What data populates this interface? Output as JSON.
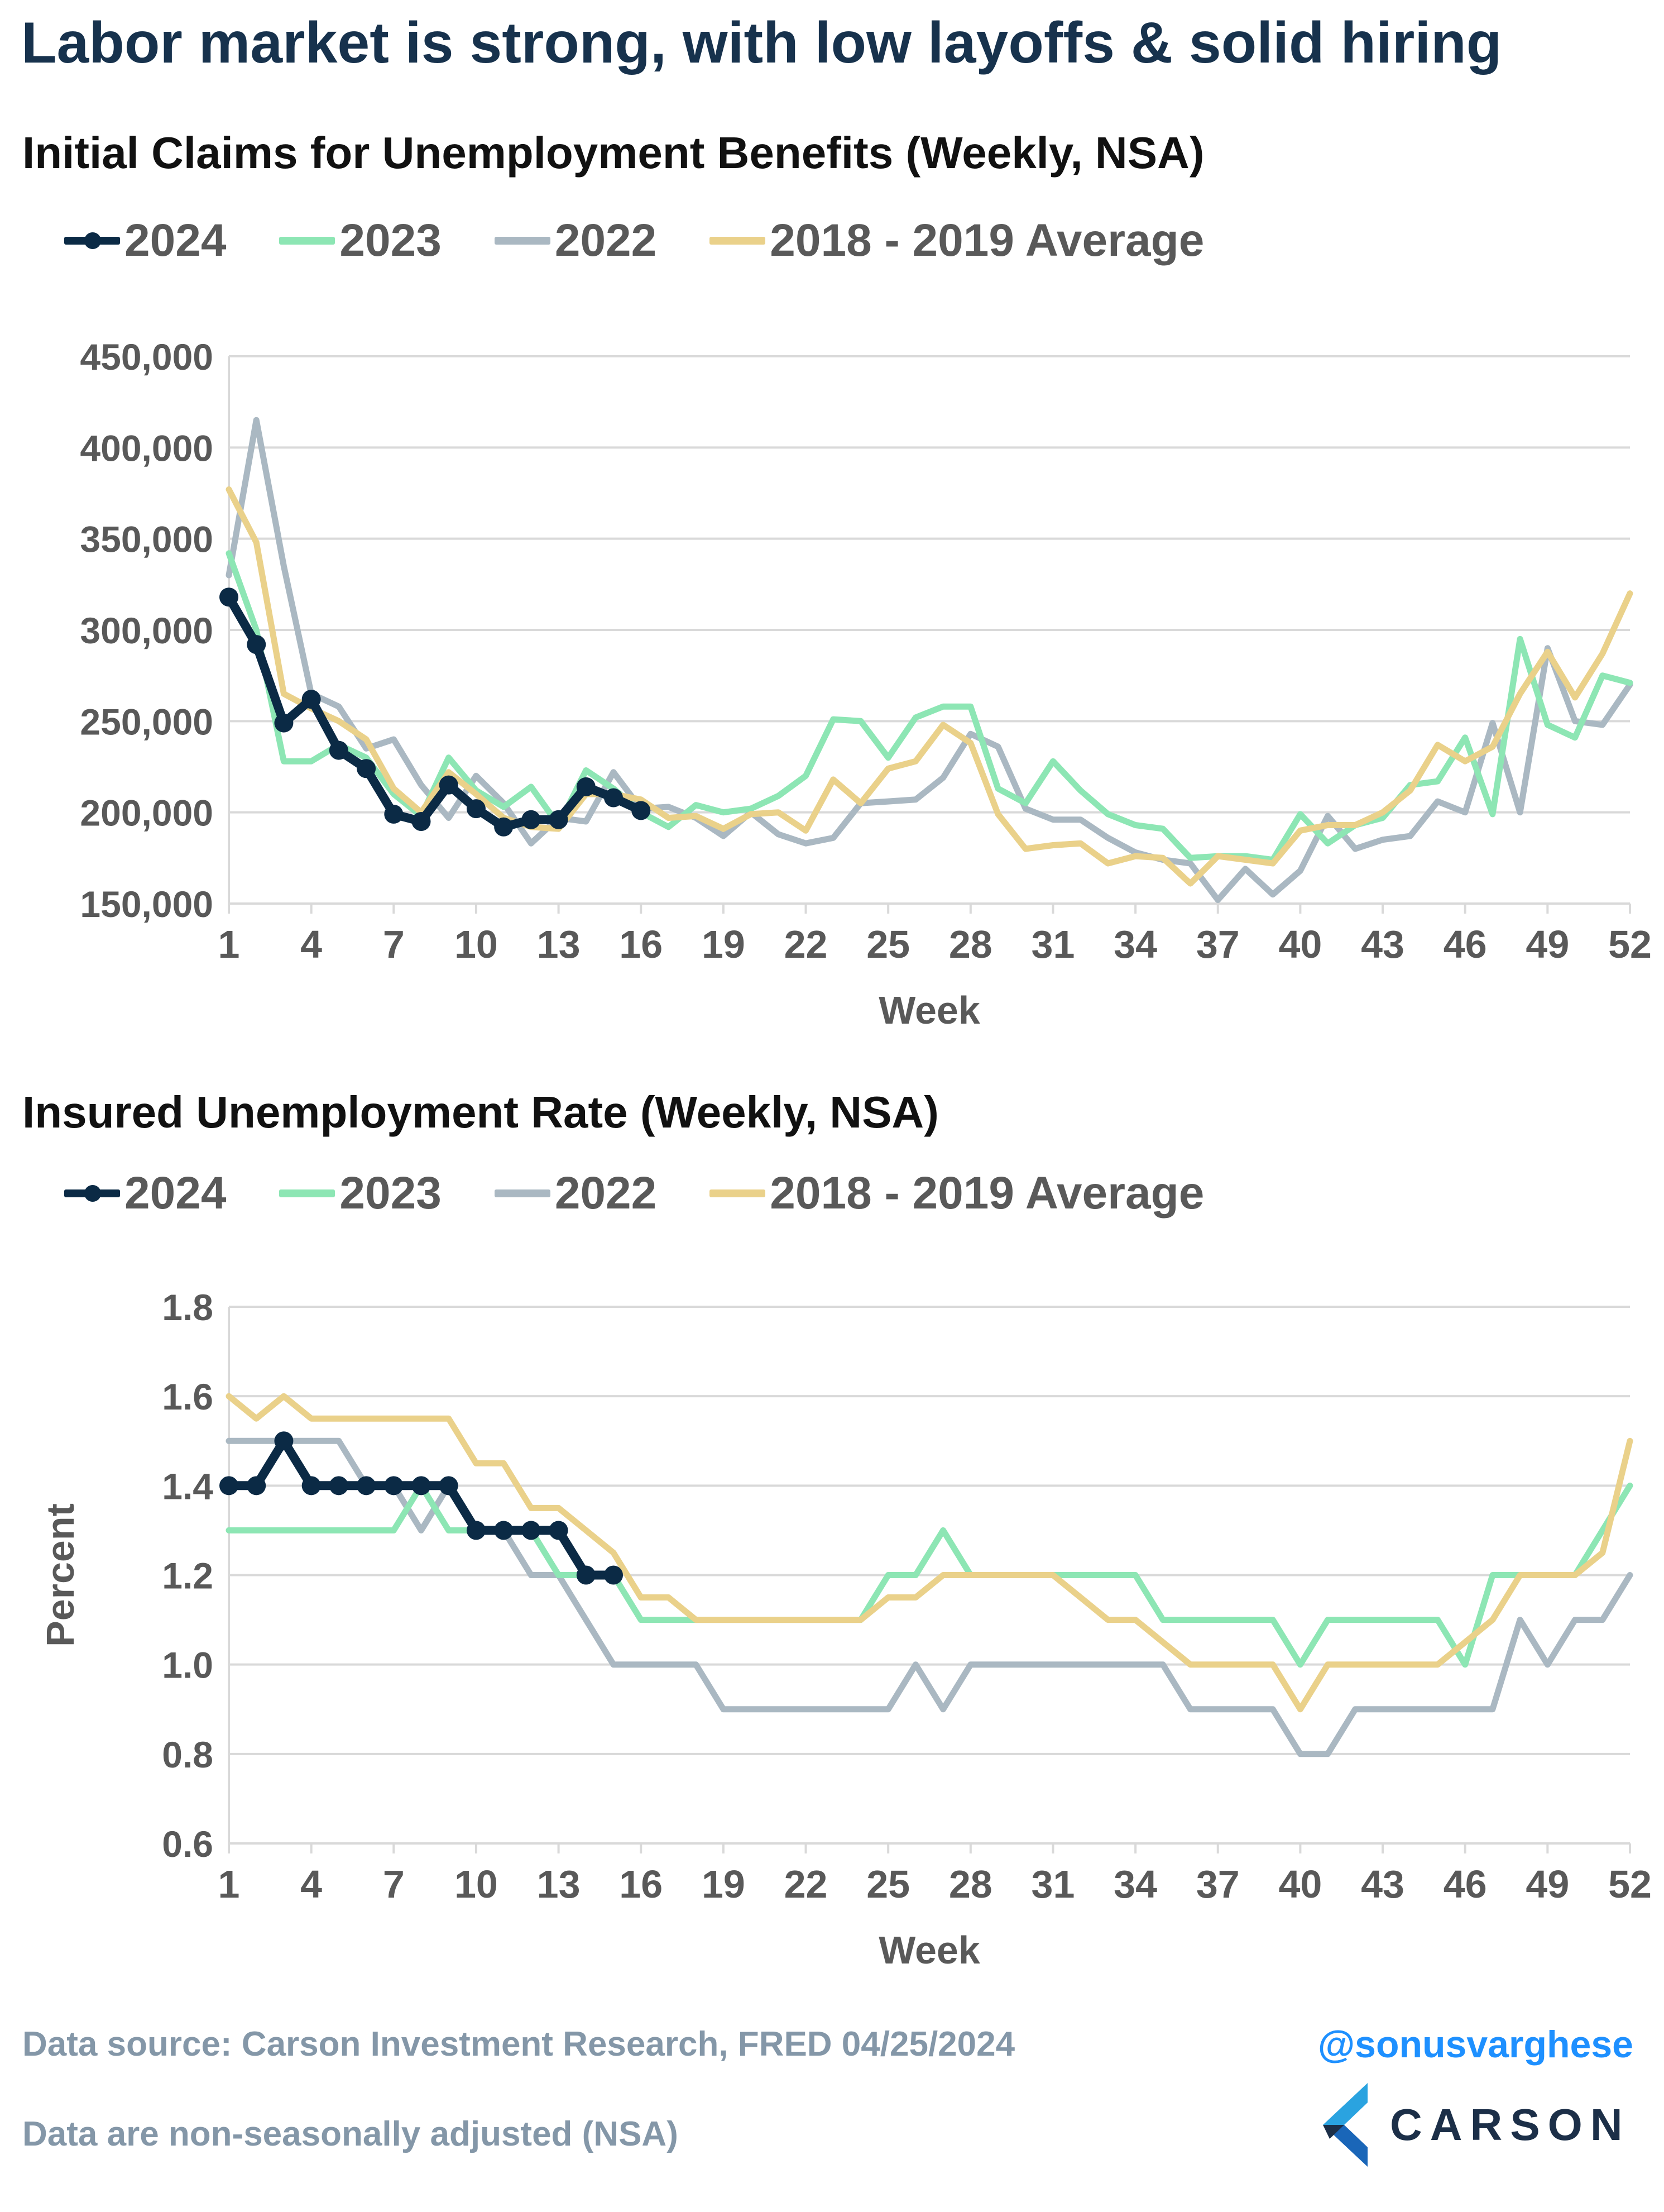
{
  "title": "Labor market is strong, with low layoffs & solid hiring",
  "colors": {
    "2024": "#0b2a45",
    "2023": "#8de6b4",
    "2022": "#aab8c2",
    "avg": "#ead18a"
  },
  "chart_data": [
    {
      "type": "line",
      "title": "Initial Claims for Unemployment Benefits (Weekly, NSA)",
      "xlabel": "Week",
      "ylabel": "",
      "xlim": [
        1,
        52
      ],
      "ylim": [
        150000,
        450000
      ],
      "yticks": [
        150000,
        200000,
        250000,
        300000,
        350000,
        400000,
        450000
      ],
      "ytick_labels": [
        "150,000",
        "200,000",
        "250,000",
        "300,000",
        "350,000",
        "400,000",
        "450,000"
      ],
      "xticks": [
        1,
        4,
        7,
        10,
        13,
        16,
        19,
        22,
        25,
        28,
        31,
        34,
        37,
        40,
        43,
        46,
        49,
        52
      ],
      "xtick_labels": [
        "1",
        "4",
        "7",
        "10",
        "13",
        "16",
        "19",
        "22",
        "25",
        "28",
        "31",
        "34",
        "37",
        "40",
        "43",
        "46",
        "49",
        "52"
      ],
      "grid": true,
      "legend_position": "top-left",
      "series": [
        {
          "name": "2022",
          "key": "2022",
          "markers": false,
          "values": [
            330000,
            415000,
            335000,
            265000,
            258000,
            235000,
            240000,
            215000,
            197000,
            220000,
            205000,
            183000,
            197000,
            195000,
            222000,
            202000,
            203000,
            197000,
            187000,
            200000,
            188000,
            183000,
            186000,
            205000,
            206000,
            207000,
            219000,
            243000,
            236000,
            202000,
            196000,
            196000,
            186000,
            178000,
            174000,
            172000,
            152000,
            169000,
            155000,
            168000,
            198000,
            180000,
            185000,
            187000,
            206000,
            200000,
            249000,
            200000,
            290000,
            250000,
            248000,
            270000
          ]
        },
        {
          "name": "2023",
          "key": "2023",
          "markers": false,
          "values": [
            342000,
            300000,
            228000,
            228000,
            237000,
            230000,
            210000,
            198000,
            230000,
            212000,
            203000,
            214000,
            193000,
            223000,
            213000,
            200000,
            192000,
            204000,
            200000,
            202000,
            209000,
            220000,
            251000,
            250000,
            230000,
            252000,
            258000,
            258000,
            213000,
            205000,
            228000,
            212000,
            199000,
            193000,
            191000,
            175000,
            176000,
            176000,
            174000,
            199000,
            183000,
            193000,
            197000,
            215000,
            217000,
            241000,
            199000,
            295000,
            248000,
            241000,
            275000,
            271000
          ]
        },
        {
          "name": "2018 - 2019 Average",
          "key": "avg",
          "markers": false,
          "values": [
            377000,
            348000,
            265000,
            257000,
            250000,
            240000,
            213000,
            200000,
            222000,
            210000,
            197000,
            192000,
            191000,
            210000,
            210000,
            207000,
            197000,
            198000,
            191000,
            199000,
            200000,
            190000,
            218000,
            205000,
            224000,
            228000,
            248000,
            238000,
            199000,
            180000,
            182000,
            183000,
            172000,
            176000,
            175000,
            161000,
            176000,
            174000,
            172000,
            190000,
            193000,
            193000,
            200000,
            212000,
            237000,
            228000,
            236000,
            265000,
            288000,
            263000,
            287000,
            320000
          ]
        },
        {
          "name": "2024",
          "key": "2024",
          "markers": true,
          "values": [
            318000,
            292000,
            249000,
            262000,
            234000,
            224000,
            199000,
            195000,
            215000,
            202000,
            192000,
            196000,
            196000,
            214000,
            208000,
            201000
          ]
        }
      ]
    },
    {
      "type": "line",
      "title": "Insured Unemployment Rate (Weekly, NSA)",
      "xlabel": "Week",
      "ylabel": "Percent",
      "xlim": [
        1,
        52
      ],
      "ylim": [
        0.6,
        1.8
      ],
      "yticks": [
        0.6,
        0.8,
        1.0,
        1.2,
        1.4,
        1.6,
        1.8
      ],
      "ytick_labels": [
        "0.6",
        "0.8",
        "1.0",
        "1.2",
        "1.4",
        "1.6",
        "1.8"
      ],
      "xticks": [
        1,
        4,
        7,
        10,
        13,
        16,
        19,
        22,
        25,
        28,
        31,
        34,
        37,
        40,
        43,
        46,
        49,
        52
      ],
      "xtick_labels": [
        "1",
        "4",
        "7",
        "10",
        "13",
        "16",
        "19",
        "22",
        "25",
        "28",
        "31",
        "34",
        "37",
        "40",
        "43",
        "46",
        "49",
        "52"
      ],
      "grid": true,
      "legend_position": "top-left",
      "series": [
        {
          "name": "2022",
          "key": "2022",
          "markers": false,
          "values": [
            1.5,
            1.5,
            1.5,
            1.5,
            1.5,
            1.4,
            1.4,
            1.3,
            1.4,
            1.3,
            1.3,
            1.2,
            1.2,
            1.1,
            1.0,
            1.0,
            1.0,
            1.0,
            0.9,
            0.9,
            0.9,
            0.9,
            0.9,
            0.9,
            0.9,
            1.0,
            0.9,
            1.0,
            1.0,
            1.0,
            1.0,
            1.0,
            1.0,
            1.0,
            1.0,
            0.9,
            0.9,
            0.9,
            0.9,
            0.8,
            0.8,
            0.9,
            0.9,
            0.9,
            0.9,
            0.9,
            0.9,
            1.1,
            1.0,
            1.1,
            1.1,
            1.2
          ]
        },
        {
          "name": "2023",
          "key": "2023",
          "markers": false,
          "values": [
            1.3,
            1.3,
            1.3,
            1.3,
            1.3,
            1.3,
            1.3,
            1.4,
            1.3,
            1.3,
            1.3,
            1.3,
            1.2,
            1.2,
            1.2,
            1.1,
            1.1,
            1.1,
            1.1,
            1.1,
            1.1,
            1.1,
            1.1,
            1.1,
            1.2,
            1.2,
            1.3,
            1.2,
            1.2,
            1.2,
            1.2,
            1.2,
            1.2,
            1.2,
            1.1,
            1.1,
            1.1,
            1.1,
            1.1,
            1.0,
            1.1,
            1.1,
            1.1,
            1.1,
            1.1,
            1.0,
            1.2,
            1.2,
            1.2,
            1.2,
            1.3,
            1.4
          ]
        },
        {
          "name": "2018 - 2019 Average",
          "key": "avg",
          "markers": false,
          "values": [
            1.6,
            1.55,
            1.6,
            1.55,
            1.55,
            1.55,
            1.55,
            1.55,
            1.55,
            1.45,
            1.45,
            1.35,
            1.35,
            1.3,
            1.25,
            1.15,
            1.15,
            1.1,
            1.1,
            1.1,
            1.1,
            1.1,
            1.1,
            1.1,
            1.15,
            1.15,
            1.2,
            1.2,
            1.2,
            1.2,
            1.2,
            1.15,
            1.1,
            1.1,
            1.05,
            1.0,
            1.0,
            1.0,
            1.0,
            0.9,
            1.0,
            1.0,
            1.0,
            1.0,
            1.0,
            1.05,
            1.1,
            1.2,
            1.2,
            1.2,
            1.25,
            1.5
          ]
        },
        {
          "name": "2024",
          "key": "2024",
          "markers": true,
          "values": [
            1.4,
            1.4,
            1.5,
            1.4,
            1.4,
            1.4,
            1.4,
            1.4,
            1.4,
            1.3,
            1.3,
            1.3,
            1.3,
            1.2,
            1.2
          ]
        }
      ]
    }
  ],
  "legend_items": [
    {
      "key": "2024",
      "label": "2024"
    },
    {
      "key": "2023",
      "label": "2023"
    },
    {
      "key": "2022",
      "label": "2022"
    },
    {
      "key": "avg",
      "label": "2018 - 2019 Average"
    }
  ],
  "footer": {
    "source": "Data source: Carson Investment Research, FRED   04/25/2024",
    "note": "Data are non-seasonally adjusted (NSA)",
    "handle": "@sonusvarghese",
    "brand": "CARSON"
  }
}
